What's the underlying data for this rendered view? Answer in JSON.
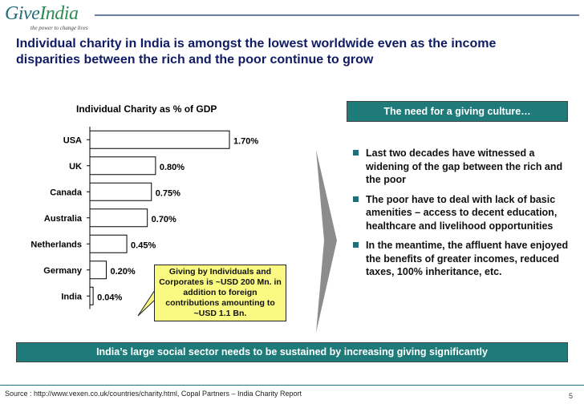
{
  "logo": {
    "text_gi": "Give",
    "text_india": "India",
    "tagline": "the power to change lives"
  },
  "headline": "Individual charity in India is amongst the lowest worldwide even as the income disparities between the rich and the poor continue to grow",
  "chart_data": {
    "type": "bar",
    "orientation": "horizontal",
    "title": "Individual Charity as % of GDP",
    "categories": [
      "USA",
      "UK",
      "Canada",
      "Australia",
      "Netherlands",
      "Germany",
      "India"
    ],
    "values": [
      1.7,
      0.8,
      0.75,
      0.7,
      0.45,
      0.2,
      0.04
    ],
    "value_labels": [
      "1.70%",
      "0.80%",
      "0.75%",
      "0.70%",
      "0.45%",
      "0.20%",
      "0.04%"
    ],
    "unit": "%",
    "xlim": [
      0,
      1.7
    ],
    "bar_color": "#ffffff",
    "bar_outline": "#000000"
  },
  "callout": {
    "text": "Giving by Individuals and Corporates is ~USD 200 Mn. in addition to foreign contributions amounting to ~USD 1.1 Bn."
  },
  "right_panel": {
    "header": "The need for a giving culture…",
    "bullets": [
      "Last two decades have witnessed a widening of the gap between the rich and the poor",
      "The poor have to deal with lack of basic amenities – access to decent education, healthcare and livelihood opportunities",
      "In the meantime, the affluent have enjoyed the benefits of greater incomes, reduced taxes, 100% inheritance, etc."
    ]
  },
  "footer_band": "India’s large social sector needs to be sustained by increasing giving significantly",
  "source": "Source : http://www.vexen.co.uk/countries/charity.html, Copal Partners – India Charity Report",
  "page_number": "5",
  "colors": {
    "teal": "#1f7a7a",
    "navy": "#0f1c63",
    "callout": "#fafa82"
  }
}
